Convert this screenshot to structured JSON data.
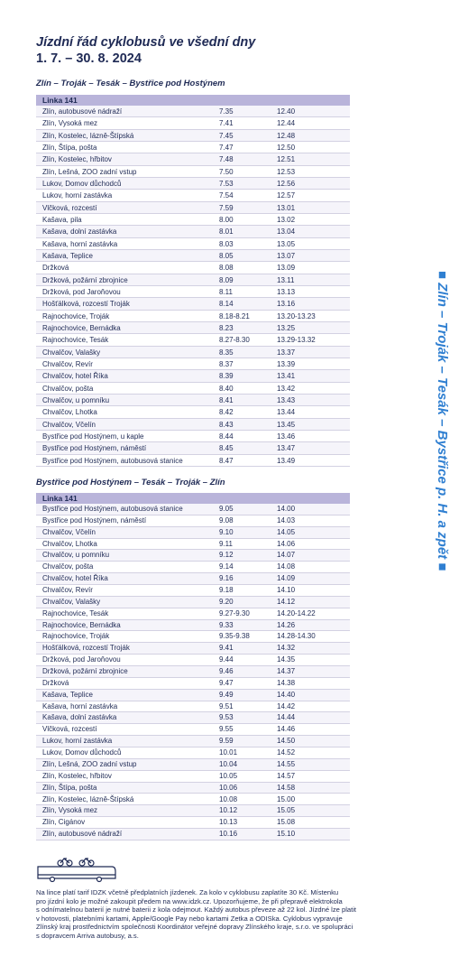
{
  "header": {
    "title": "Jízdní řád cyklobusů ve všední dny",
    "subtitle": "1. 7. – 30. 8. 2024"
  },
  "side_label": "■ Zlín – Troják – Tesák – Bystřice p. H. a zpět ■",
  "sections": [
    {
      "title": "Zlín – Troják – Tesák – Bystřice pod Hostýnem",
      "line": "Linka 141",
      "rows": [
        [
          "Zlín, autobusové nádraží",
          "7.35",
          "12.40"
        ],
        [
          "Zlín, Vysoká mez",
          "7.41",
          "12.44"
        ],
        [
          "Zlín, Kostelec, lázně-Štípská",
          "7.45",
          "12.48"
        ],
        [
          "Zlín, Štípa, pošta",
          "7.47",
          "12.50"
        ],
        [
          "Zlín, Kostelec, hřbitov",
          "7.48",
          "12.51"
        ],
        [
          "Zlín, Lešná, ZOO zadní vstup",
          "7.50",
          "12.53"
        ],
        [
          "Lukov, Domov důchodců",
          "7.53",
          "12.56"
        ],
        [
          "Lukov, horní zastávka",
          "7.54",
          "12.57"
        ],
        [
          "Vlčková, rozcestí",
          "7.59",
          "13.01"
        ],
        [
          "Kašava, pila",
          "8.00",
          "13.02"
        ],
        [
          "Kašava, dolní zastávka",
          "8.01",
          "13.04"
        ],
        [
          "Kašava, horní zastávka",
          "8.03",
          "13.05"
        ],
        [
          "Kašava, Teplice",
          "8.05",
          "13.07"
        ],
        [
          "Držková",
          "8.08",
          "13.09"
        ],
        [
          "Držková, požární zbrojnice",
          "8.09",
          "13.11"
        ],
        [
          "Držková, pod Jaroňovou",
          "8.11",
          "13.13"
        ],
        [
          "Hošťálková, rozcestí Troják",
          "8.14",
          "13.16"
        ],
        [
          "Rajnochovice, Troják",
          "8.18-8.21",
          "13.20-13.23"
        ],
        [
          "Rajnochovice, Bernádka",
          "8.23",
          "13.25"
        ],
        [
          "Rajnochovice, Tesák",
          "8.27-8.30",
          "13.29-13.32"
        ],
        [
          "Chvalčov, Valašky",
          "8.35",
          "13.37"
        ],
        [
          "Chvalčov, Revír",
          "8.37",
          "13.39"
        ],
        [
          "Chvalčov, hotel Říka",
          "8.39",
          "13.41"
        ],
        [
          "Chvalčov, pošta",
          "8.40",
          "13.42"
        ],
        [
          "Chvalčov, u pomníku",
          "8.41",
          "13.43"
        ],
        [
          "Chvalčov, Lhotka",
          "8.42",
          "13.44"
        ],
        [
          "Chvalčov, Včelín",
          "8.43",
          "13.45"
        ],
        [
          "Bystřice pod Hostýnem, u kaple",
          "8.44",
          "13.46"
        ],
        [
          "Bystřice pod Hostýnem, náměstí",
          "8.45",
          "13.47"
        ],
        [
          "Bystřice pod Hostýnem, autobusová stanice",
          "8.47",
          "13.49"
        ]
      ]
    },
    {
      "title": "Bystřice pod Hostýnem – Tesák – Troják – Zlín",
      "line": "Linka 141",
      "rows": [
        [
          "Bystřice pod Hostýnem, autobusová stanice",
          "9.05",
          "14.00"
        ],
        [
          "Bystřice pod Hostýnem, náměstí",
          "9.08",
          "14.03"
        ],
        [
          "Chvalčov, Včelín",
          "9.10",
          "14.05"
        ],
        [
          "Chvalčov, Lhotka",
          "9.11",
          "14.06"
        ],
        [
          "Chvalčov, u pomníku",
          "9.12",
          "14.07"
        ],
        [
          "Chvalčov, pošta",
          "9.14",
          "14.08"
        ],
        [
          "Chvalčov, hotel Říka",
          "9.16",
          "14.09"
        ],
        [
          "Chvalčov, Revír",
          "9.18",
          "14.10"
        ],
        [
          "Chvalčov, Valašky",
          "9.20",
          "14.12"
        ],
        [
          "Rajnochovice, Tesák",
          "9.27-9.30",
          "14.20-14.22"
        ],
        [
          "Rajnochovice, Bernádka",
          "9.33",
          "14.26"
        ],
        [
          "Rajnochovice, Troják",
          "9.35-9.38",
          "14.28-14.30"
        ],
        [
          "Hošťálková, rozcestí Troják",
          "9.41",
          "14.32"
        ],
        [
          "Držková, pod Jaroňovou",
          "9.44",
          "14.35"
        ],
        [
          "Držková, požární zbrojnice",
          "9.46",
          "14.37"
        ],
        [
          "Držková",
          "9.47",
          "14.38"
        ],
        [
          "Kašava, Teplice",
          "9.49",
          "14.40"
        ],
        [
          "Kašava, horní zastávka",
          "9.51",
          "14.42"
        ],
        [
          "Kašava, dolní zastávka",
          "9.53",
          "14.44"
        ],
        [
          "Vlčková, rozcestí",
          "9.55",
          "14.46"
        ],
        [
          "Lukov, horní zastávka",
          "9.59",
          "14.50"
        ],
        [
          "Lukov, Domov důchodců",
          "10.01",
          "14.52"
        ],
        [
          "Zlín, Lešná, ZOO zadní vstup",
          "10.04",
          "14.55"
        ],
        [
          "Zlín, Kostelec, hřbitov",
          "10.05",
          "14.57"
        ],
        [
          "Zlín, Štípa, pošta",
          "10.06",
          "14.58"
        ],
        [
          "Zlín, Kostelec, lázně-Štípská",
          "10.08",
          "15.00"
        ],
        [
          "Zlín, Vysoká mez",
          "10.12",
          "15.05"
        ],
        [
          "Zlín, Cigánov",
          "10.13",
          "15.08"
        ],
        [
          "Zlín, autobusové nádraží",
          "10.16",
          "15.10"
        ]
      ]
    }
  ],
  "note_lines": [
    "Na lince platí tarif IDZK včetně předplatních jízdenek. Za kolo v cyklobusu zaplatíte 30 Kč. Místenku",
    "pro jízdní kolo je možné zakoupit předem na www.idzk.cz. Upozorňujeme, že při přepravě elektrokola",
    "s odnímatelnou baterií je nutné baterii z kola odejmout. Každý autobus převeze až 22 kol. Jízdné lze platit",
    "v hotovosti, platebními kartami, Apple/Google Pay nebo kartami Zetka a ODISka. Cyklobus vypravuje",
    "Zlínský kraj prostřednictvím společnosti Koordinátor veřejné dopravy Zlínského kraje, s.r.o. ve spolupráci",
    "s dopravcem Arriva autobusy, a.s."
  ]
}
